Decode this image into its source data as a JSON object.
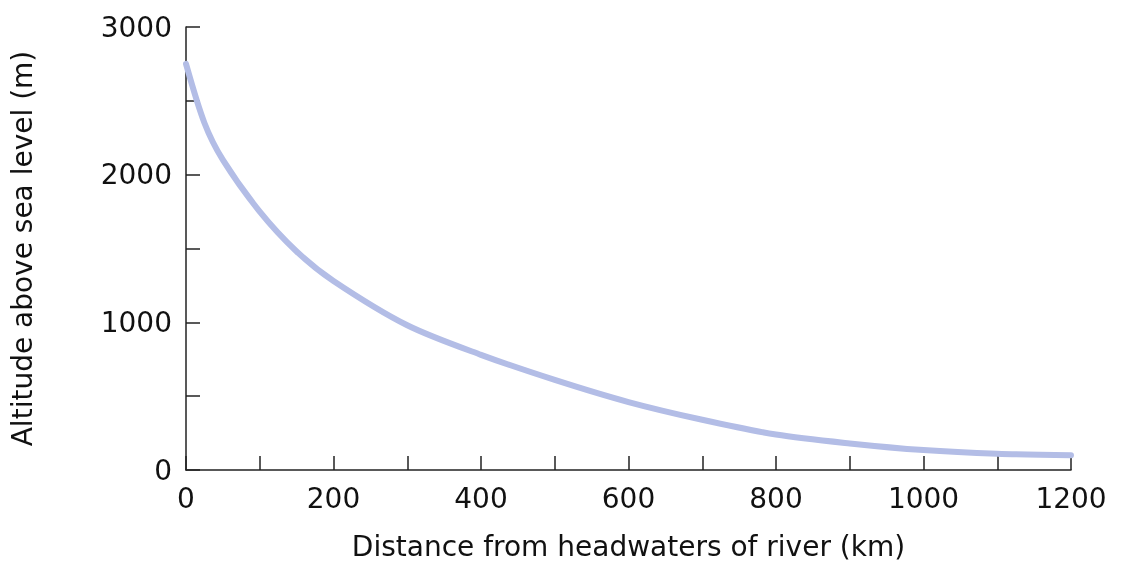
{
  "chart_data": {
    "type": "line",
    "xlabel": "Distance from headwaters of river (km)",
    "ylabel": "Altitude above sea level (m)",
    "x": [
      0,
      25,
      50,
      100,
      150,
      200,
      300,
      400,
      500,
      600,
      700,
      800,
      900,
      1000,
      1100,
      1200
    ],
    "series": [
      {
        "color": "#b3bde6",
        "values": [
          2750,
          2350,
          2100,
          1750,
          1480,
          1280,
          980,
          780,
          610,
          460,
          340,
          240,
          180,
          135,
          110,
          100
        ]
      }
    ],
    "xlim": [
      0,
      1200
    ],
    "xticks": [
      0,
      {
        "value": 100,
        "label": null
      },
      200,
      {
        "value": 300,
        "label": null
      },
      400,
      {
        "value": 500,
        "label": null
      },
      600,
      {
        "value": 700,
        "label": null
      },
      800,
      {
        "value": 900,
        "label": null
      },
      1000,
      {
        "value": 1100,
        "label": null
      },
      1200
    ],
    "ylim": [
      0,
      3000
    ],
    "yticks": [
      0,
      {
        "value": 500,
        "label": null
      },
      1000,
      {
        "value": 1500,
        "label": null
      },
      2000,
      {
        "value": 2500,
        "label": null
      },
      3000
    ],
    "grid": false,
    "marker": "none",
    "line_style": "solid"
  }
}
